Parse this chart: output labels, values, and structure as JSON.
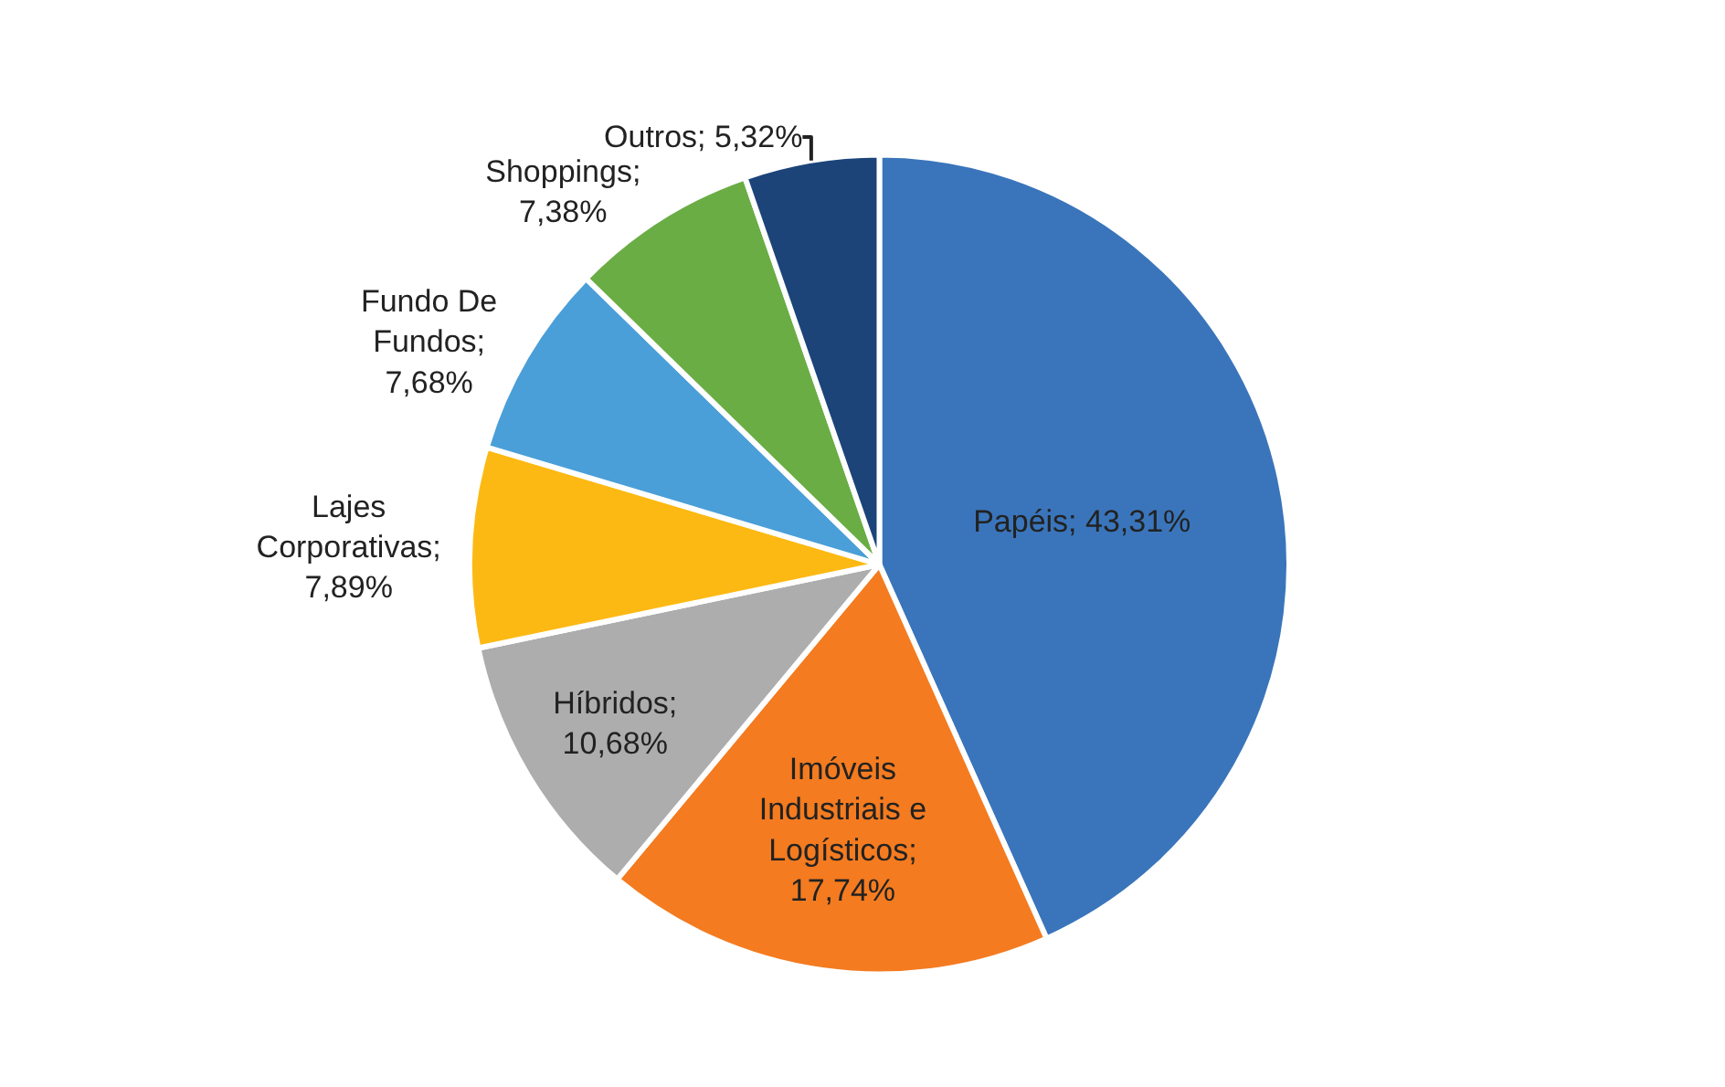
{
  "chart_data": {
    "type": "pie",
    "categories": [
      "Papéis",
      "Imóveis Industriais e Logísticos",
      "Híbridos",
      "Lajes Corporativas",
      "Fundo De Fundos",
      "Shoppings",
      "Outros"
    ],
    "values": [
      43.31,
      17.74,
      10.68,
      7.89,
      7.68,
      7.38,
      5.32
    ],
    "colors": [
      "#3a75bb",
      "#f47b20",
      "#adadad",
      "#fdb913",
      "#4a9fd8",
      "#6aad45",
      "#1c4479"
    ],
    "value_labels": [
      "; 43,31%",
      "; 17,74%",
      "; 10,68%",
      "; 7,89%",
      "; 7,68%",
      "; 7,38%",
      "; 5,32%"
    ],
    "legend": false
  }
}
